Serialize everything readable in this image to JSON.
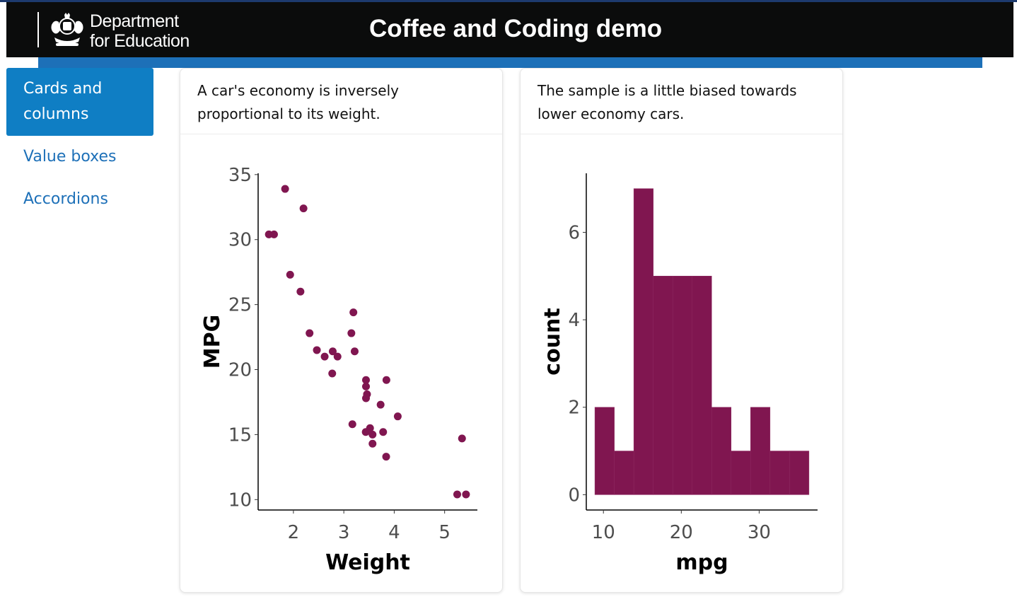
{
  "header": {
    "logo_line1": "Department",
    "logo_line2": "for Education",
    "app_title": "Coffee and Coding demo"
  },
  "nav": {
    "items": [
      {
        "label": "Cards and columns",
        "active": true
      },
      {
        "label": "Value boxes",
        "active": false
      },
      {
        "label": "Accordions",
        "active": false
      }
    ]
  },
  "cards": [
    {
      "title": "A car's economy is inversely proportional to its weight."
    },
    {
      "title": "The sample is a little biased towards lower economy cars."
    }
  ],
  "colors": {
    "accent": "#1d70b8",
    "point": "#801650",
    "header_bg": "#0b0c0c"
  },
  "chart_data": [
    {
      "type": "scatter",
      "xlabel": "Weight",
      "ylabel": "MPG",
      "xlim": [
        1.3,
        5.65
      ],
      "ylim": [
        9.2,
        35.1
      ],
      "xticks": [
        2,
        3,
        4,
        5
      ],
      "yticks": [
        10,
        15,
        20,
        25,
        30,
        35
      ],
      "points": [
        {
          "x": 2.62,
          "y": 21.0
        },
        {
          "x": 2.875,
          "y": 21.0
        },
        {
          "x": 2.32,
          "y": 22.8
        },
        {
          "x": 3.215,
          "y": 21.4
        },
        {
          "x": 3.44,
          "y": 18.7
        },
        {
          "x": 3.46,
          "y": 18.1
        },
        {
          "x": 3.57,
          "y": 14.3
        },
        {
          "x": 3.19,
          "y": 24.4
        },
        {
          "x": 3.15,
          "y": 22.8
        },
        {
          "x": 3.44,
          "y": 19.2
        },
        {
          "x": 3.44,
          "y": 17.8
        },
        {
          "x": 4.07,
          "y": 16.4
        },
        {
          "x": 3.73,
          "y": 17.3
        },
        {
          "x": 3.78,
          "y": 15.2
        },
        {
          "x": 5.25,
          "y": 10.4
        },
        {
          "x": 5.424,
          "y": 10.4
        },
        {
          "x": 5.345,
          "y": 14.7
        },
        {
          "x": 2.2,
          "y": 32.4
        },
        {
          "x": 1.615,
          "y": 30.4
        },
        {
          "x": 1.835,
          "y": 33.9
        },
        {
          "x": 2.465,
          "y": 21.5
        },
        {
          "x": 3.52,
          "y": 15.5
        },
        {
          "x": 3.435,
          "y": 15.2
        },
        {
          "x": 3.84,
          "y": 13.3
        },
        {
          "x": 3.845,
          "y": 19.2
        },
        {
          "x": 1.935,
          "y": 27.3
        },
        {
          "x": 2.14,
          "y": 26.0
        },
        {
          "x": 1.513,
          "y": 30.4
        },
        {
          "x": 3.17,
          "y": 15.8
        },
        {
          "x": 2.77,
          "y": 19.7
        },
        {
          "x": 3.57,
          "y": 15.0
        },
        {
          "x": 2.78,
          "y": 21.4
        }
      ]
    },
    {
      "type": "bar",
      "subtype": "histogram",
      "xlabel": "mpg",
      "ylabel": "count",
      "xlim": [
        7.8,
        37.5
      ],
      "ylim": [
        -0.35,
        7.35
      ],
      "xticks": [
        10,
        20,
        30
      ],
      "yticks": [
        0,
        2,
        4,
        6
      ],
      "bins": [
        {
          "x0": 8.9,
          "x1": 11.4,
          "count": 2
        },
        {
          "x0": 11.4,
          "x1": 13.9,
          "count": 1
        },
        {
          "x0": 13.9,
          "x1": 16.4,
          "count": 7
        },
        {
          "x0": 16.4,
          "x1": 18.9,
          "count": 5
        },
        {
          "x0": 18.9,
          "x1": 21.4,
          "count": 5
        },
        {
          "x0": 21.4,
          "x1": 23.9,
          "count": 5
        },
        {
          "x0": 23.9,
          "x1": 26.4,
          "count": 2
        },
        {
          "x0": 26.4,
          "x1": 28.9,
          "count": 1
        },
        {
          "x0": 28.9,
          "x1": 31.4,
          "count": 2
        },
        {
          "x0": 31.4,
          "x1": 33.9,
          "count": 1
        },
        {
          "x0": 33.9,
          "x1": 36.4,
          "count": 1
        }
      ]
    }
  ]
}
